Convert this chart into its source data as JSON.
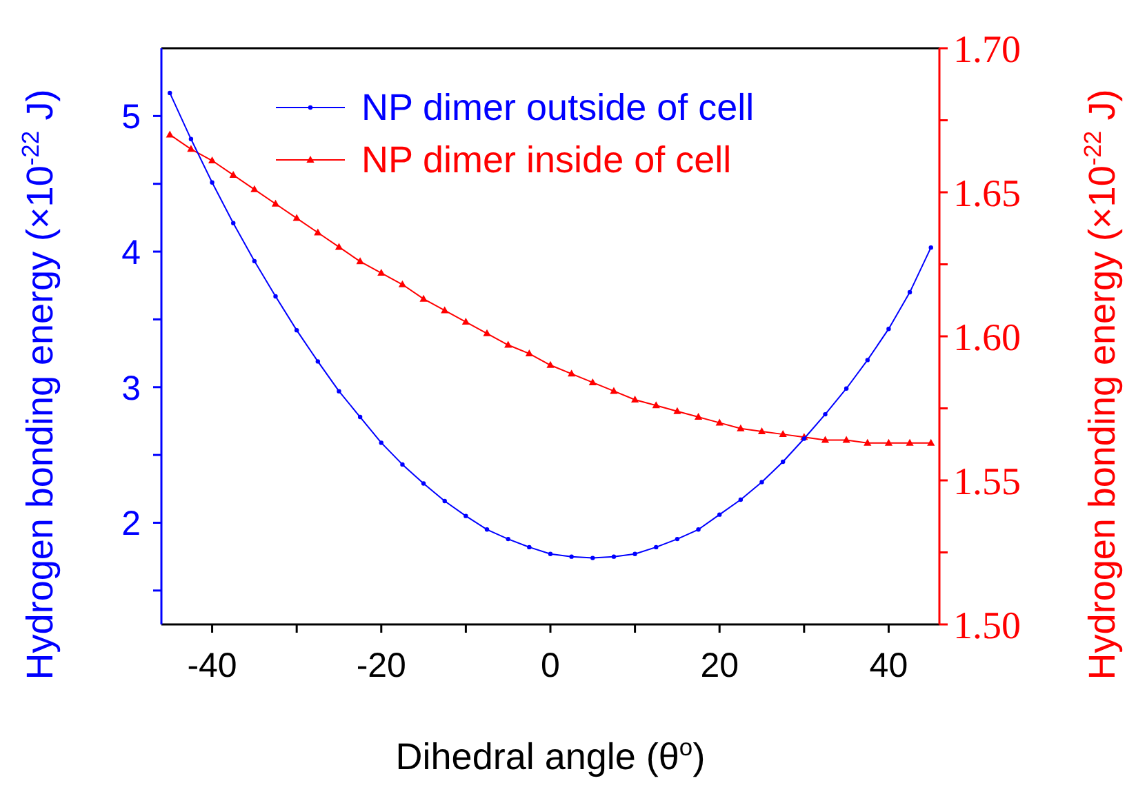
{
  "chart_data": {
    "type": "line",
    "xlabel": "Dihedral angle (θ$^{o}$)",
    "ylabel": "Hydrogen bonding energy (×10$^{-22}$ J)",
    "y2label": "Hydrogen bonding energy (×10$^{-22}$ J)",
    "x": [
      -45,
      -42.5,
      -40,
      -37.5,
      -35,
      -32.5,
      -30,
      -27.5,
      -25,
      -22.5,
      -20,
      -17.5,
      -15,
      -12.5,
      -10,
      -7.5,
      -5,
      -2.5,
      0,
      2.5,
      5,
      7.5,
      10,
      12.5,
      15,
      17.5,
      20,
      22.5,
      25,
      27.5,
      30,
      32.5,
      35,
      37.5,
      40,
      42.5,
      45
    ],
    "series": [
      {
        "name": "NP dimer outside of cell",
        "color": "#0000ff",
        "marker": "circle",
        "values": [
          5.17,
          4.83,
          4.51,
          4.21,
          3.93,
          3.67,
          3.42,
          3.19,
          2.97,
          2.78,
          2.59,
          2.43,
          2.29,
          2.16,
          2.05,
          1.95,
          1.88,
          1.82,
          1.77,
          1.75,
          1.74,
          1.75,
          1.77,
          1.82,
          1.88,
          1.95,
          2.06,
          2.17,
          2.3,
          2.45,
          2.62,
          2.8,
          2.99,
          3.2,
          3.43,
          3.7,
          4.03
        ]
      },
      {
        "name": "NP dimer inside of cell",
        "color": "#ff0000",
        "marker": "triangle",
        "axis": "y2",
        "values": [
          1.67,
          1.665,
          1.661,
          1.656,
          1.651,
          1.646,
          1.641,
          1.636,
          1.631,
          1.626,
          1.622,
          1.618,
          1.613,
          1.609,
          1.605,
          1.601,
          1.597,
          1.594,
          1.59,
          1.587,
          1.584,
          1.581,
          1.578,
          1.576,
          1.574,
          1.572,
          1.57,
          1.568,
          1.567,
          1.566,
          1.565,
          1.564,
          1.564,
          1.563,
          1.563,
          1.563,
          1.563
        ]
      }
    ],
    "xlim": [
      -46,
      46
    ],
    "xticks": [
      -40,
      {
        "value": -30,
        "label": null
      },
      -20,
      {
        "value": -10,
        "label": null
      },
      0,
      {
        "value": 10,
        "label": null
      },
      20,
      {
        "value": 30,
        "label": null
      },
      40
    ],
    "ylim": [
      1.25,
      5.5
    ],
    "yticks": [
      {
        "value": 1.5,
        "label": null
      },
      2,
      {
        "value": 2.5,
        "label": null
      },
      3,
      {
        "value": 3.5,
        "label": null
      },
      4,
      {
        "value": 4.5,
        "label": null
      },
      5
    ],
    "y2lim": [
      1.5,
      1.7
    ],
    "y2ticks": [
      {
        "value": 1.5,
        "label": "1.50"
      },
      {
        "value": 1.525,
        "label": null
      },
      {
        "value": 1.55,
        "label": "1.55"
      },
      {
        "value": 1.575,
        "label": null
      },
      {
        "value": 1.6,
        "label": "1.60"
      },
      {
        "value": 1.625,
        "label": null
      },
      {
        "value": 1.65,
        "label": "1.65"
      },
      {
        "value": 1.675,
        "label": null
      },
      {
        "value": 1.7,
        "label": "1.70"
      }
    ],
    "legend": "top",
    "grid": false
  }
}
